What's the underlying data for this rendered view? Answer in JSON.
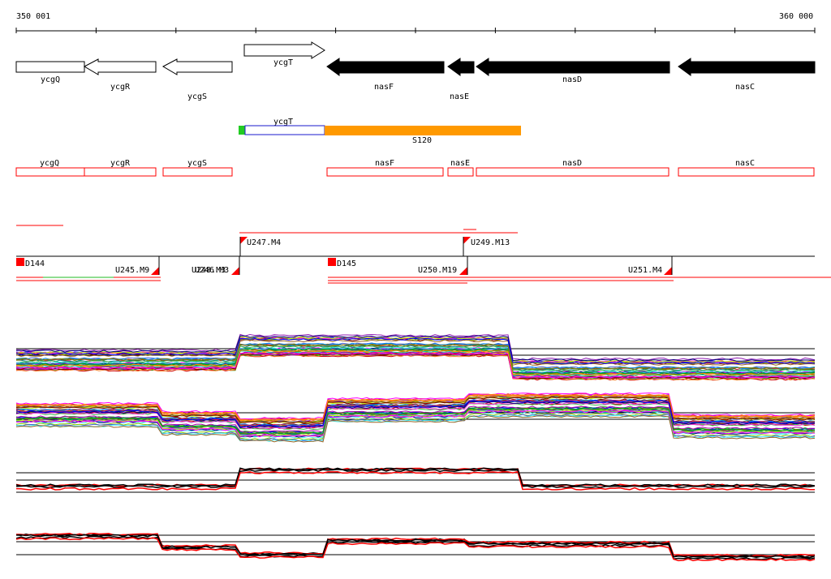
{
  "ruler": {
    "start_label": "350 001",
    "end_label": "360 000",
    "start": 350001,
    "end": 360000
  },
  "genes": [
    {
      "name": "ycgQ",
      "start": 350001,
      "end": 350850,
      "strand": "+",
      "style": "outline"
    },
    {
      "name": "ycgR",
      "start": 350850,
      "end": 351720,
      "strand": "-",
      "style": "outline"
    },
    {
      "name": "ycgS",
      "start": 351820,
      "end": 352670,
      "strand": "-",
      "style": "outline"
    },
    {
      "name": "ycgT",
      "start": 352820,
      "end": 353820,
      "strand": "+",
      "style": "outline"
    },
    {
      "name": "nasF",
      "start": 353890,
      "end": 355280,
      "strand": "-",
      "style": "filled"
    },
    {
      "name": "nasE",
      "start": 355330,
      "end": 355660,
      "strand": "-",
      "style": "filled"
    },
    {
      "name": "nasD",
      "start": 355700,
      "end": 358100,
      "strand": "-",
      "style": "filled"
    },
    {
      "name": "nasC",
      "start": 358320,
      "end": 360000,
      "strand": "-",
      "style": "filled"
    }
  ],
  "ycgT_track": {
    "label": "ycgT",
    "s_label": "S120",
    "green_color": "#22cc22",
    "blue_color": "#1a1acc",
    "orange_color": "#ff9900"
  },
  "annotation_boxes": [
    {
      "name": "ycgQ"
    },
    {
      "name": "ycgR"
    },
    {
      "name": "ycgS"
    },
    {
      "name": "nasF"
    },
    {
      "name": "nasE"
    },
    {
      "name": "nasD"
    },
    {
      "name": "nasC"
    }
  ],
  "segments": [
    {
      "label": "D144"
    },
    {
      "label": "U245.M9"
    },
    {
      "label": "U248.M3"
    },
    {
      "label": "U246.M3"
    },
    {
      "label": "U247.M4"
    },
    {
      "label": "D145"
    },
    {
      "label": "U250.M19"
    },
    {
      "label": "U249.M13"
    },
    {
      "label": "U251.M4"
    }
  ],
  "colors": {
    "segment_red": "#ff0000",
    "line_green": "#22bb22",
    "gene_fill": "#000000"
  }
}
